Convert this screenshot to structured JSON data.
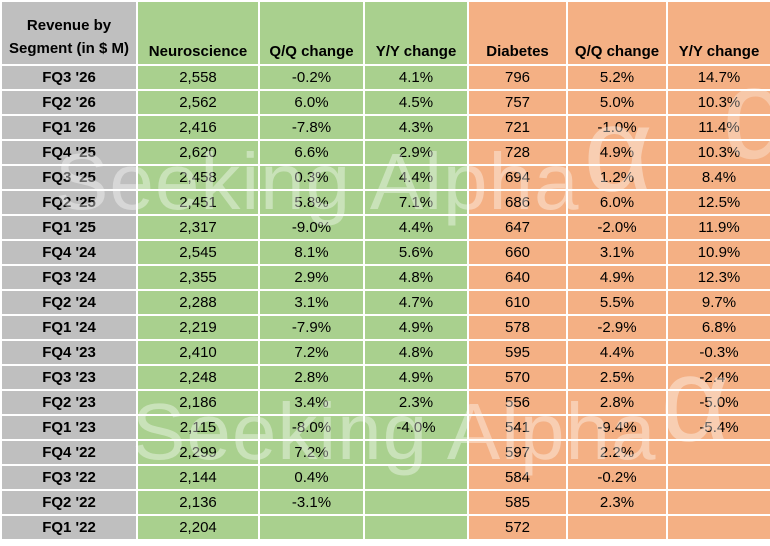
{
  "chart_data": {
    "type": "table",
    "title": "Revenue by Segment (in $ M)",
    "corner": {
      "line1": "Revenue by",
      "line2": "Segment (in $ M)"
    },
    "categories": [
      "FQ3 '26",
      "FQ2 '26",
      "FQ1 '26",
      "FQ4 '25",
      "FQ3 '25",
      "FQ2 '25",
      "FQ1 '25",
      "FQ4 '24",
      "FQ3 '24",
      "FQ2 '24",
      "FQ1 '24",
      "FQ4 '23",
      "FQ3 '23",
      "FQ2 '23",
      "FQ1 '23",
      "FQ4 '22",
      "FQ3 '22",
      "FQ2 '22",
      "FQ1 '22"
    ],
    "series": [
      {
        "name": "Neuroscience",
        "values": [
          "2,558",
          "2,562",
          "2,416",
          "2,620",
          "2,458",
          "2,451",
          "2,317",
          "2,545",
          "2,355",
          "2,288",
          "2,219",
          "2,410",
          "2,248",
          "2,186",
          "2,115",
          "2,299",
          "2,144",
          "2,136",
          "2,204"
        ]
      },
      {
        "name": "Q/Q change",
        "values": [
          "-0.2%",
          "6.0%",
          "-7.8%",
          "6.6%",
          "0.3%",
          "5.8%",
          "-9.0%",
          "8.1%",
          "2.9%",
          "3.1%",
          "-7.9%",
          "7.2%",
          "2.8%",
          "3.4%",
          "-8.0%",
          "7.2%",
          "0.4%",
          "-3.1%",
          ""
        ]
      },
      {
        "name": "Y/Y change",
        "values": [
          "4.1%",
          "4.5%",
          "4.3%",
          "2.9%",
          "4.4%",
          "7.1%",
          "4.4%",
          "5.6%",
          "4.8%",
          "4.7%",
          "4.9%",
          "4.8%",
          "4.9%",
          "2.3%",
          "-4.0%",
          "",
          "",
          "",
          ""
        ]
      },
      {
        "name": "Diabetes",
        "values": [
          "796",
          "757",
          "721",
          "728",
          "694",
          "686",
          "647",
          "660",
          "640",
          "610",
          "578",
          "595",
          "570",
          "556",
          "541",
          "597",
          "584",
          "585",
          "572"
        ]
      },
      {
        "name": "Q/Q change",
        "values": [
          "5.2%",
          "5.0%",
          "-1.0%",
          "4.9%",
          "1.2%",
          "6.0%",
          "-2.0%",
          "3.1%",
          "4.9%",
          "5.5%",
          "-2.9%",
          "4.4%",
          "2.5%",
          "2.8%",
          "-9.4%",
          "2.2%",
          "-0.2%",
          "2.3%",
          ""
        ]
      },
      {
        "name": "Y/Y change",
        "values": [
          "14.7%",
          "10.3%",
          "11.4%",
          "10.3%",
          "8.4%",
          "12.5%",
          "11.9%",
          "10.9%",
          "12.3%",
          "9.7%",
          "6.8%",
          "-0.3%",
          "-2.4%",
          "-5.0%",
          "-5.4%",
          "",
          "",
          "",
          ""
        ]
      }
    ],
    "column_groups": [
      {
        "name": "Neuroscience",
        "color": "#A9D08E"
      },
      {
        "name": "Diabetes",
        "color": "#F4B084"
      }
    ],
    "layout": {
      "label_column_color": "#BFBFBF",
      "grid": "#FFFFFF"
    }
  },
  "watermark": {
    "text": "Seeking Alpha",
    "symbol": "α"
  },
  "colors": {
    "label_bg": "#BFBFBF",
    "neuroscience_bg": "#A9D08E",
    "diabetes_bg": "#F4B084",
    "grid": "#FFFFFF",
    "text": "#000000"
  }
}
